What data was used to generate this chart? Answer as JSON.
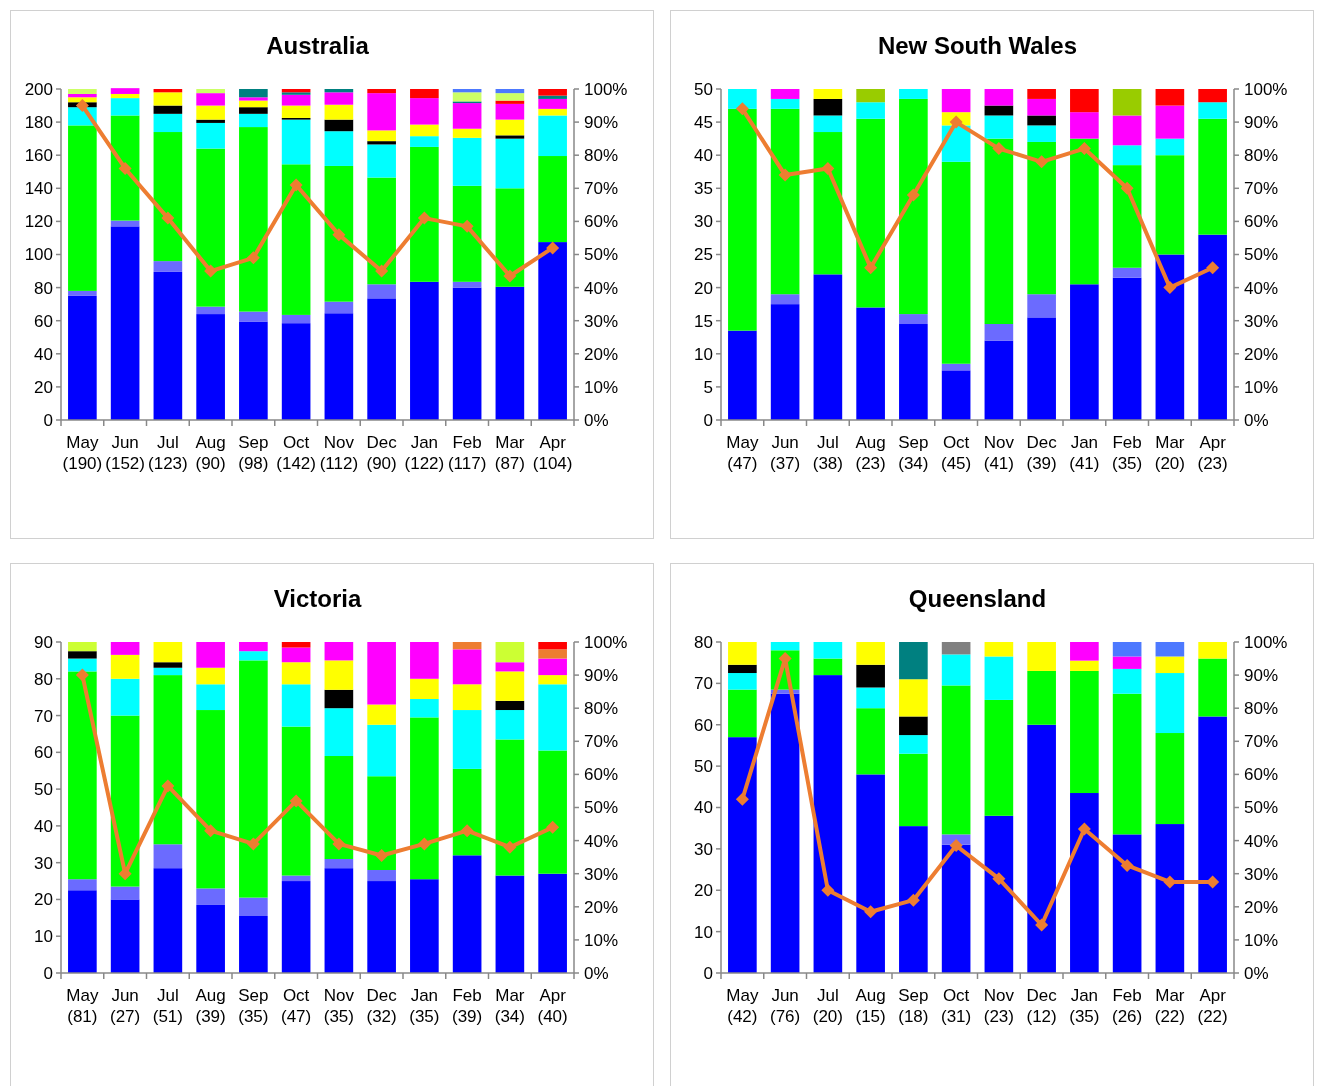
{
  "chart_data": [
    {
      "type": "bar",
      "stacked": true,
      "title": "Australia",
      "marker": "diamond",
      "categories": [
        "May\n(190)",
        "Jun\n(152)",
        "Jul\n(123)",
        "Aug\n(90)",
        "Sep\n(98)",
        "Oct\n(142)",
        "Nov\n(112)",
        "Dec\n(90)",
        "Jan\n(122)",
        "Feb\n(117)",
        "Mar\n(87)",
        "Apr\n(104)"
      ],
      "ylim": [
        0,
        200
      ],
      "yticks": [
        0,
        20,
        40,
        60,
        80,
        100,
        120,
        140,
        160,
        180,
        200
      ],
      "y2lim": [
        0,
        100
      ],
      "y2ticks": [
        {
          "value": 0,
          "label": "0%"
        },
        {
          "value": 10,
          "label": "10%"
        },
        {
          "value": 20,
          "label": "20%"
        },
        {
          "value": 30,
          "label": "30%"
        },
        {
          "value": 40,
          "label": "40%"
        },
        {
          "value": 50,
          "label": "50%"
        },
        {
          "value": 60,
          "label": "60%"
        },
        {
          "value": 70,
          "label": "70%"
        },
        {
          "value": 80,
          "label": "80%"
        },
        {
          "value": 90,
          "label": "90%"
        },
        {
          "value": 100,
          "label": "100%"
        }
      ],
      "series": [
        {
          "color": "#0000ff",
          "values": [
            75,
            117,
            89.5,
            64,
            59.5,
            58.5,
            64.5,
            73.5,
            83.5,
            80,
            80.5,
            107.5
          ]
        },
        {
          "color": "#6b6bff",
          "values": [
            3,
            3.5,
            6.5,
            4.5,
            6,
            5,
            7,
            8.5,
            null,
            3.5,
            null,
            null
          ]
        },
        {
          "color": "#00ff00",
          "values": [
            100,
            63.5,
            78,
            95.5,
            111.5,
            91,
            82,
            64.5,
            81.5,
            58,
            59.5,
            52
          ]
        },
        {
          "color": "#00ffff",
          "values": [
            11,
            10.5,
            11,
            15.5,
            8,
            27,
            21,
            20,
            6.5,
            29,
            30,
            24.5
          ]
        },
        {
          "color": "#000000",
          "values": [
            3,
            null,
            5,
            2,
            4,
            1,
            7,
            2,
            null,
            null,
            2,
            null
          ]
        },
        {
          "color": "#ffff00",
          "values": [
            3,
            2.5,
            8,
            8.5,
            4,
            7.5,
            9,
            6.5,
            7,
            5.5,
            9.5,
            4
          ]
        },
        {
          "color": "#ff00ff",
          "values": [
            2,
            3.5,
            null,
            7.5,
            2,
            6.5,
            7.5,
            22.5,
            16,
            15.5,
            9.5,
            6
          ]
        },
        {
          "color": "#008080",
          "values": [
            null,
            null,
            null,
            null,
            5,
            1.5,
            2,
            null,
            null,
            1,
            null,
            2
          ]
        },
        {
          "color": "#ff0000",
          "values": [
            null,
            null,
            2,
            null,
            null,
            2,
            null,
            2.5,
            5.5,
            null,
            2,
            4
          ]
        },
        {
          "color": "#ccff66",
          "values": [
            3,
            null,
            null,
            2.5,
            null,
            null,
            null,
            null,
            null,
            5.5,
            4.5,
            null
          ]
        },
        {
          "color": "#4d79ff",
          "values": [
            null,
            null,
            null,
            null,
            null,
            null,
            null,
            null,
            null,
            2,
            2.5,
            null
          ]
        },
        {
          "type": "line",
          "axis": "y2",
          "color": "#ed7d31",
          "values": [
            95,
            76,
            61,
            45,
            49,
            71,
            56,
            45,
            61,
            58.5,
            43.5,
            52
          ]
        }
      ]
    },
    {
      "type": "bar",
      "stacked": true,
      "title": "New South Wales",
      "marker": "diamond",
      "categories": [
        "May\n(47)",
        "Jun\n(37)",
        "Jul\n(38)",
        "Aug\n(23)",
        "Sep\n(34)",
        "Oct\n(45)",
        "Nov\n(41)",
        "Dec\n(39)",
        "Jan\n(41)",
        "Feb\n(35)",
        "Mar\n(20)",
        "Apr\n(23)"
      ],
      "ylim": [
        0,
        50
      ],
      "yticks": [
        0,
        5,
        10,
        15,
        20,
        25,
        30,
        35,
        40,
        45,
        50
      ],
      "y2lim": [
        0,
        100
      ],
      "y2ticks": [
        {
          "value": 0,
          "label": "0%"
        },
        {
          "value": 10,
          "label": "10%"
        },
        {
          "value": 20,
          "label": "20%"
        },
        {
          "value": 30,
          "label": "30%"
        },
        {
          "value": 40,
          "label": "40%"
        },
        {
          "value": 50,
          "label": "50%"
        },
        {
          "value": 60,
          "label": "60%"
        },
        {
          "value": 70,
          "label": "70%"
        },
        {
          "value": 80,
          "label": "80%"
        },
        {
          "value": 90,
          "label": "90%"
        },
        {
          "value": 100,
          "label": "100%"
        }
      ],
      "series": [
        {
          "color": "#0000ff",
          "values": [
            13.5,
            17.5,
            22,
            17,
            14.5,
            7.5,
            12,
            15.5,
            20.5,
            21.5,
            25,
            28
          ]
        },
        {
          "color": "#6b6bff",
          "values": [
            null,
            1.5,
            null,
            null,
            1.5,
            1,
            2.5,
            3.5,
            null,
            1.5,
            null,
            null
          ]
        },
        {
          "color": "#00ff00",
          "values": [
            33.5,
            28,
            21.5,
            28.5,
            32.5,
            30.5,
            28,
            23,
            22,
            15.5,
            15,
            17.5
          ]
        },
        {
          "color": "#00ffff",
          "values": [
            3,
            1.5,
            2.5,
            2.5,
            1.5,
            5.5,
            3.5,
            2.5,
            null,
            3,
            2.5,
            2.5
          ]
        },
        {
          "color": "#000000",
          "values": [
            null,
            null,
            2.5,
            null,
            null,
            null,
            1.5,
            1.5,
            null,
            null,
            null,
            null
          ]
        },
        {
          "color": "#ffff00",
          "values": [
            null,
            null,
            1.5,
            null,
            null,
            2,
            null,
            null,
            null,
            null,
            null,
            null
          ]
        },
        {
          "color": "#ff00ff",
          "values": [
            null,
            1.5,
            null,
            null,
            null,
            3.5,
            2.5,
            2.5,
            4,
            4.5,
            5,
            null
          ]
        },
        {
          "color": "#99cc00",
          "values": [
            null,
            null,
            null,
            2,
            null,
            null,
            null,
            null,
            null,
            4,
            null,
            null
          ]
        },
        {
          "color": "#ff0000",
          "values": [
            null,
            null,
            null,
            null,
            null,
            null,
            null,
            1.5,
            3.5,
            null,
            2.5,
            2
          ]
        },
        {
          "type": "line",
          "axis": "y2",
          "color": "#ed7d31",
          "values": [
            94,
            74,
            76,
            46,
            68,
            90,
            82,
            78,
            82,
            70,
            40,
            46
          ]
        }
      ]
    },
    {
      "type": "bar",
      "stacked": true,
      "title": "Victoria",
      "marker": "diamond",
      "categories": [
        "May\n(81)",
        "Jun\n(27)",
        "Jul\n(51)",
        "Aug\n(39)",
        "Sep\n(35)",
        "Oct\n(47)",
        "Nov\n(35)",
        "Dec\n(32)",
        "Jan\n(35)",
        "Feb\n(39)",
        "Mar\n(34)",
        "Apr\n(40)"
      ],
      "ylim": [
        0,
        90
      ],
      "yticks": [
        0,
        10,
        20,
        30,
        40,
        50,
        60,
        70,
        80,
        90
      ],
      "y2lim": [
        0,
        100
      ],
      "y2ticks": [
        {
          "value": 0,
          "label": "0%"
        },
        {
          "value": 10,
          "label": "10%"
        },
        {
          "value": 20,
          "label": "20%"
        },
        {
          "value": 30,
          "label": "30%"
        },
        {
          "value": 40,
          "label": "40%"
        },
        {
          "value": 50,
          "label": "50%"
        },
        {
          "value": 60,
          "label": "60%"
        },
        {
          "value": 70,
          "label": "70%"
        },
        {
          "value": 80,
          "label": "80%"
        },
        {
          "value": 90,
          "label": "90%"
        },
        {
          "value": 100,
          "label": "100%"
        }
      ],
      "series": [
        {
          "color": "#0000ff",
          "values": [
            22.5,
            20,
            28.5,
            18.5,
            15.5,
            25,
            28.5,
            25,
            25.5,
            32,
            26.5,
            27
          ]
        },
        {
          "color": "#6b6bff",
          "values": [
            3,
            3.5,
            6.5,
            4.5,
            5,
            1.5,
            2.5,
            3,
            null,
            null,
            null,
            null
          ]
        },
        {
          "color": "#00ff00",
          "values": [
            56.5,
            46.5,
            46,
            48.5,
            64.5,
            40.5,
            28,
            25.5,
            44,
            23.5,
            37,
            33.5
          ]
        },
        {
          "color": "#00ffff",
          "values": [
            3.5,
            10,
            2,
            7,
            2.5,
            11.5,
            13,
            14,
            5,
            16,
            8,
            18
          ]
        },
        {
          "color": "#000000",
          "values": [
            2,
            null,
            1.5,
            null,
            null,
            null,
            5,
            null,
            null,
            null,
            2.5,
            null
          ]
        },
        {
          "color": "#ffff00",
          "values": [
            null,
            6.5,
            5.5,
            4.5,
            null,
            6,
            8,
            5.5,
            5.5,
            7,
            8,
            2.5
          ]
        },
        {
          "color": "#ff00ff",
          "values": [
            null,
            3.5,
            null,
            7,
            2.5,
            4,
            5,
            17,
            10,
            9.5,
            2.5,
            4.5
          ]
        },
        {
          "color": "#ed7d31",
          "values": [
            null,
            null,
            null,
            null,
            null,
            null,
            null,
            null,
            null,
            2,
            null,
            2.5
          ]
        },
        {
          "color": "#ff0000",
          "values": [
            null,
            null,
            null,
            null,
            null,
            1.5,
            null,
            null,
            null,
            null,
            null,
            2
          ]
        },
        {
          "color": "#ccff33",
          "values": [
            2.5,
            null,
            null,
            null,
            null,
            null,
            null,
            null,
            null,
            null,
            5.5,
            null
          ]
        },
        {
          "type": "line",
          "axis": "y2",
          "color": "#ed7d31",
          "values": [
            90,
            30,
            56.5,
            43,
            39,
            52,
            39,
            35.5,
            39,
            43,
            38,
            44
          ]
        }
      ]
    },
    {
      "type": "bar",
      "stacked": true,
      "title": "Queensland",
      "marker": "diamond",
      "categories": [
        "May\n(42)",
        "Jun\n(76)",
        "Jul\n(20)",
        "Aug\n(15)",
        "Sep\n(18)",
        "Oct\n(31)",
        "Nov\n(23)",
        "Dec\n(12)",
        "Jan\n(35)",
        "Feb\n(26)",
        "Mar\n(22)",
        "Apr\n(22)"
      ],
      "ylim": [
        0,
        80
      ],
      "yticks": [
        0,
        10,
        20,
        30,
        40,
        50,
        60,
        70,
        80
      ],
      "y2lim": [
        0,
        100
      ],
      "y2ticks": [
        {
          "value": 0,
          "label": "0%"
        },
        {
          "value": 10,
          "label": "10%"
        },
        {
          "value": 20,
          "label": "20%"
        },
        {
          "value": 30,
          "label": "30%"
        },
        {
          "value": 40,
          "label": "40%"
        },
        {
          "value": 50,
          "label": "50%"
        },
        {
          "value": 60,
          "label": "60%"
        },
        {
          "value": 70,
          "label": "70%"
        },
        {
          "value": 80,
          "label": "80%"
        },
        {
          "value": 90,
          "label": "90%"
        },
        {
          "value": 100,
          "label": "100%"
        }
      ],
      "series": [
        {
          "color": "#0000ff",
          "values": [
            57,
            67.5,
            72,
            48,
            35.5,
            31,
            38,
            60,
            43.5,
            33.5,
            36,
            62
          ]
        },
        {
          "color": "#6b6bff",
          "values": [
            null,
            1,
            null,
            null,
            null,
            2.5,
            null,
            null,
            null,
            null,
            null,
            null
          ]
        },
        {
          "color": "#00ff00",
          "values": [
            11.5,
            9.5,
            4,
            16,
            17.5,
            36,
            28,
            13,
            29.5,
            34,
            22,
            14
          ]
        },
        {
          "color": "#00ffff",
          "values": [
            4,
            2,
            4,
            5,
            4.5,
            7.5,
            10.5,
            null,
            null,
            6,
            14.5,
            null
          ]
        },
        {
          "color": "#000000",
          "values": [
            2,
            null,
            null,
            5.5,
            4.5,
            null,
            null,
            null,
            null,
            null,
            null,
            null
          ]
        },
        {
          "color": "#ffff00",
          "values": [
            5.5,
            null,
            null,
            5.5,
            9,
            null,
            3.5,
            7,
            2.5,
            null,
            4,
            4
          ]
        },
        {
          "color": "#ff00ff",
          "values": [
            null,
            null,
            null,
            null,
            null,
            null,
            null,
            null,
            4.5,
            3,
            null,
            null
          ]
        },
        {
          "color": "#008080",
          "values": [
            null,
            null,
            null,
            null,
            9,
            null,
            null,
            null,
            null,
            null,
            null,
            null
          ]
        },
        {
          "color": "#808080",
          "values": [
            null,
            null,
            null,
            null,
            null,
            3,
            null,
            null,
            null,
            null,
            null,
            null
          ]
        },
        {
          "color": "#4d79ff",
          "values": [
            null,
            null,
            null,
            null,
            null,
            null,
            null,
            null,
            null,
            3.5,
            3.5,
            null
          ]
        },
        {
          "type": "line",
          "axis": "y2",
          "color": "#ed7d31",
          "values": [
            52.5,
            95,
            25,
            18.5,
            22,
            38.5,
            28.5,
            14.5,
            43.5,
            32.5,
            27.5,
            27.5
          ]
        }
      ]
    }
  ]
}
